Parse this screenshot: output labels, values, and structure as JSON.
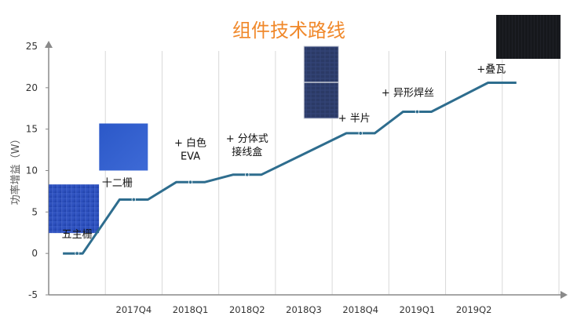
{
  "chart_data": {
    "type": "line",
    "title": "组件技术路线",
    "ylabel": "功率增益（W）",
    "xlabel": "",
    "ylim": [
      -5,
      25
    ],
    "yticks": [
      -5,
      0,
      5,
      10,
      15,
      20,
      25
    ],
    "grid": "vertical",
    "categories": [
      "2017Q4",
      "2018Q1",
      "2018Q2",
      "2018Q3",
      "2018Q4",
      "2019Q1",
      "2019Q2"
    ],
    "series": [
      {
        "x": [
          0.25,
          0.6,
          1.25,
          1.75,
          2.25,
          2.75,
          3.25,
          3.75,
          5.25,
          5.75,
          6.25,
          6.75,
          7.75,
          8.25
        ],
        "values": [
          0,
          0,
          6.5,
          6.5,
          8.6,
          8.6,
          9.5,
          9.5,
          14.5,
          14.5,
          17.1,
          17.1,
          20.6,
          20.6
        ],
        "markers": [
          0.5,
          1.5,
          2.5,
          3.5,
          5.5,
          6.5
        ]
      }
    ],
    "annotations": [
      {
        "lines": [
          "五主栅"
        ],
        "x": 0.5,
        "y": 0,
        "thumb": "blue-cell"
      },
      {
        "lines": [
          "十二栅"
        ],
        "x": 1.5,
        "y": 6.5,
        "thumb": "blue-cell"
      },
      {
        "lines": [
          "+ 白色",
          "EVA"
        ],
        "x": 2.5,
        "y": 8.6
      },
      {
        "lines": [
          "+ 分体式",
          "接线盒"
        ],
        "x": 3.5,
        "y": 9.5
      },
      {
        "lines": [
          "+ 半片"
        ],
        "x": 5.5,
        "y": 14.5,
        "thumb": "half-cell-module"
      },
      {
        "lines": [
          "+ 异形焊丝"
        ],
        "x": 6.5,
        "y": 17.1
      },
      {
        "lines": [
          "+叠瓦"
        ],
        "x": 8.0,
        "y": 20.6,
        "thumb": "shingled-module"
      }
    ],
    "colors": {
      "title": "#f0882a",
      "line": "#2e6d8e",
      "axis": "#8a8a8a",
      "grid": "#d9d9d9",
      "text": "#333333"
    }
  }
}
